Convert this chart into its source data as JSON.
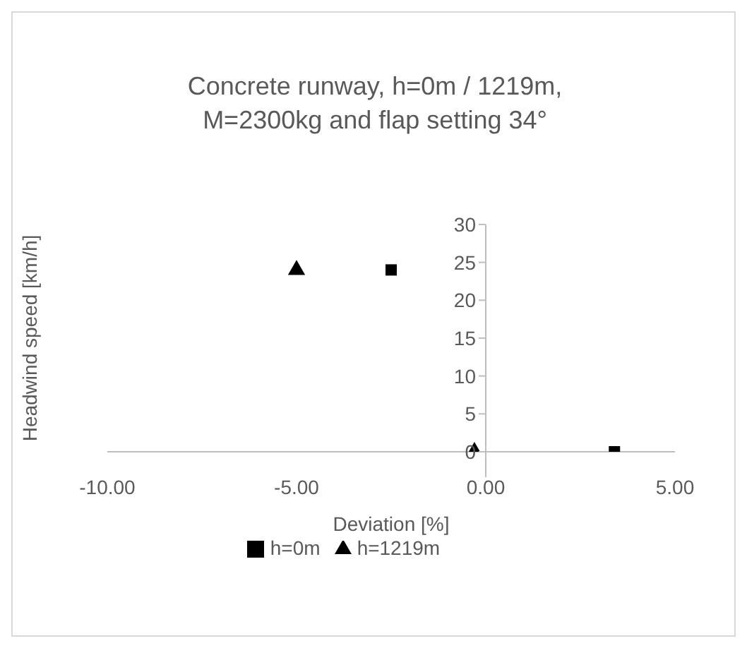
{
  "chart_data": {
    "type": "scatter",
    "title": "Concrete runway, h=0m / 1219m, M=2300kg and flap setting 34°",
    "xlabel": "Deviation [%]",
    "ylabel": "Headwind speed [km/h]",
    "xlim": [
      -10,
      5
    ],
    "xticks": [
      {
        "value": -10,
        "label": "-10.00"
      },
      {
        "value": -5,
        "label": "-5.00"
      },
      {
        "value": 0,
        "label": "0.00"
      },
      {
        "value": 5,
        "label": "5.00"
      }
    ],
    "ylim": [
      0,
      30
    ],
    "yticks": [
      0,
      5,
      10,
      15,
      20,
      25,
      30
    ],
    "grid": false,
    "legend": "bottom",
    "series": [
      {
        "name": "h=0m",
        "color": "#000000",
        "marker": "square",
        "x": [
          -2.5,
          3.4
        ],
        "values": [
          24,
          0
        ]
      },
      {
        "name": "h=1219m",
        "color": "#000000",
        "marker": "triangle",
        "x": [
          -5,
          -0.3
        ],
        "values": [
          24,
          0
        ]
      }
    ]
  }
}
